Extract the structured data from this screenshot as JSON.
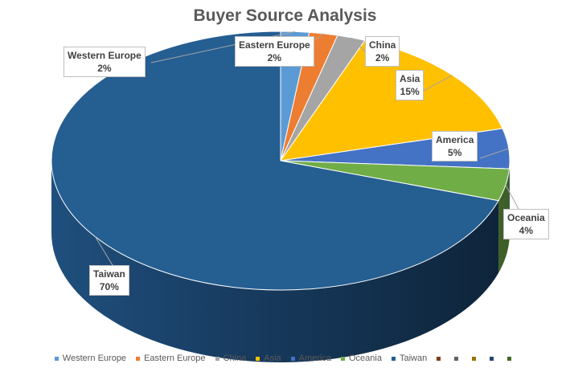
{
  "chart_data": {
    "type": "pie",
    "title": "Buyer Source Analysis",
    "three_d": true,
    "start_angle_deg": 0,
    "direction": "clockwise",
    "slices": [
      {
        "name": "Western Europe",
        "value": 2,
        "label": "2%",
        "color": "#5B9BD5"
      },
      {
        "name": "Eastern Europe",
        "value": 2,
        "label": "2%",
        "color": "#ED7D31"
      },
      {
        "name": "China",
        "value": 2,
        "label": "2%",
        "color": "#A5A5A5"
      },
      {
        "name": "Asia",
        "value": 15,
        "label": "15%",
        "color": "#FFC000"
      },
      {
        "name": "America",
        "value": 5,
        "label": "5%",
        "color": "#4472C4"
      },
      {
        "name": "Oceania",
        "value": 4,
        "label": "4%",
        "color": "#70AD47"
      },
      {
        "name": "Taiwan",
        "value": 70,
        "label": "70%",
        "color": "#255E91"
      }
    ],
    "legend": {
      "position": "bottom",
      "entries": [
        {
          "label": "Western Europe",
          "color": "#5B9BD5"
        },
        {
          "label": "Eastern Europe",
          "color": "#ED7D31"
        },
        {
          "label": "China",
          "color": "#A5A5A5"
        },
        {
          "label": "Asia",
          "color": "#FFC000"
        },
        {
          "label": "America",
          "color": "#4472C4"
        },
        {
          "label": "Oceania",
          "color": "#70AD47"
        },
        {
          "label": "Taiwan",
          "color": "#255E91"
        },
        {
          "label": "",
          "color": "#7F3F18"
        },
        {
          "label": "",
          "color": "#636363"
        },
        {
          "label": "",
          "color": "#997300"
        },
        {
          "label": "",
          "color": "#264478"
        },
        {
          "label": "",
          "color": "#43682B"
        }
      ]
    }
  }
}
